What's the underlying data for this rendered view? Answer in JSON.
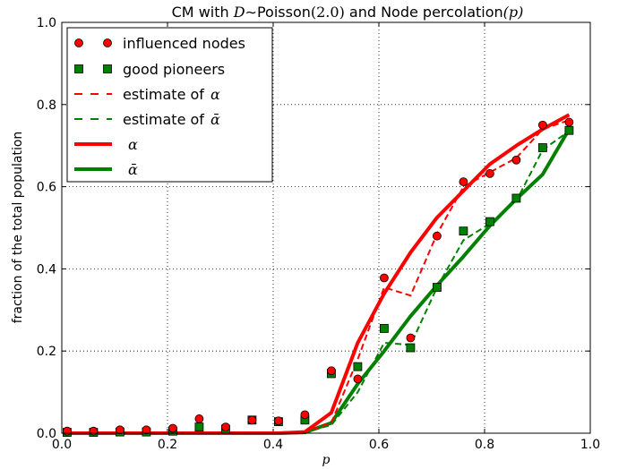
{
  "chart_data": {
    "type": "line",
    "title": {
      "prefix": "CM with ",
      "math1": "D",
      "tilde": "∼",
      "mid": "Poisson",
      "math2": "(2.0)",
      "suffix": " and Node percolation",
      "math3": "(p)"
    },
    "xlabel": "p",
    "ylabel": "fraction of the total population",
    "xlim": [
      0.0,
      1.0
    ],
    "ylim": [
      0.0,
      1.0
    ],
    "xticks": [
      "0.0",
      "0.2",
      "0.4",
      "0.6",
      "0.8",
      "1.0"
    ],
    "yticks": [
      "0.0",
      "0.2",
      "0.4",
      "0.6",
      "0.8",
      "1.0"
    ],
    "grid": true,
    "legend_position": "top-left",
    "legend": [
      {
        "key": "influenced",
        "text": "influenced nodes"
      },
      {
        "key": "pioneers",
        "text": "good pioneers"
      },
      {
        "key": "est_alpha",
        "text": "estimate of ",
        "math": "α"
      },
      {
        "key": "est_alphabar",
        "text": "estimate of ",
        "math": "ᾱ"
      },
      {
        "key": "alpha",
        "text": "",
        "math": "α"
      },
      {
        "key": "alphabar",
        "text": "",
        "math": "ᾱ"
      }
    ],
    "colors": {
      "red": "#ff0000",
      "green": "#008000",
      "grid": "#000000"
    },
    "series": {
      "influenced": {
        "x": [
          0.01,
          0.06,
          0.11,
          0.16,
          0.21,
          0.26,
          0.31,
          0.36,
          0.41,
          0.46,
          0.51,
          0.56,
          0.61,
          0.66,
          0.71,
          0.76,
          0.81,
          0.86,
          0.91,
          0.96
        ],
        "y": [
          0.005,
          0.005,
          0.008,
          0.008,
          0.012,
          0.035,
          0.015,
          0.032,
          0.03,
          0.045,
          0.152,
          0.132,
          0.378,
          0.232,
          0.48,
          0.612,
          0.632,
          0.665,
          0.75,
          0.757
        ]
      },
      "pioneers": {
        "x": [
          0.01,
          0.06,
          0.11,
          0.16,
          0.21,
          0.26,
          0.31,
          0.36,
          0.41,
          0.46,
          0.51,
          0.56,
          0.61,
          0.66,
          0.71,
          0.76,
          0.81,
          0.86,
          0.91,
          0.96
        ],
        "y": [
          0.002,
          0.002,
          0.003,
          0.003,
          0.005,
          0.015,
          0.01,
          0.032,
          0.028,
          0.032,
          0.145,
          0.162,
          0.255,
          0.208,
          0.355,
          0.492,
          0.515,
          0.572,
          0.695,
          0.737
        ]
      },
      "est_alpha": {
        "x": [
          0.01,
          0.06,
          0.11,
          0.16,
          0.21,
          0.26,
          0.31,
          0.36,
          0.41,
          0.46,
          0.51,
          0.56,
          0.61,
          0.66,
          0.71,
          0.76,
          0.81,
          0.86,
          0.91,
          0.96
        ],
        "y": [
          0,
          0,
          0,
          0,
          0,
          0,
          0,
          0,
          0,
          0.003,
          0.025,
          0.18,
          0.355,
          0.335,
          0.485,
          0.6,
          0.635,
          0.67,
          0.74,
          0.762
        ]
      },
      "est_alphabar": {
        "x": [
          0.01,
          0.06,
          0.11,
          0.16,
          0.21,
          0.26,
          0.31,
          0.36,
          0.41,
          0.46,
          0.51,
          0.56,
          0.61,
          0.66,
          0.71,
          0.76,
          0.81,
          0.86,
          0.91,
          0.96
        ],
        "y": [
          0,
          0,
          0,
          0,
          0,
          0,
          0,
          0,
          0,
          0.002,
          0.02,
          0.1,
          0.22,
          0.215,
          0.355,
          0.47,
          0.51,
          0.565,
          0.69,
          0.735
        ]
      },
      "alpha": {
        "x": [
          0.01,
          0.06,
          0.11,
          0.16,
          0.21,
          0.26,
          0.31,
          0.36,
          0.41,
          0.46,
          0.51,
          0.56,
          0.61,
          0.66,
          0.71,
          0.76,
          0.81,
          0.86,
          0.91,
          0.96
        ],
        "y": [
          0,
          0,
          0,
          0,
          0,
          0,
          0,
          0,
          0,
          0.003,
          0.05,
          0.22,
          0.34,
          0.44,
          0.525,
          0.59,
          0.655,
          0.7,
          0.74,
          0.775
        ]
      },
      "alphabar": {
        "x": [
          0.01,
          0.06,
          0.11,
          0.16,
          0.21,
          0.26,
          0.31,
          0.36,
          0.41,
          0.46,
          0.51,
          0.56,
          0.61,
          0.66,
          0.71,
          0.76,
          0.81,
          0.86,
          0.91,
          0.96
        ],
        "y": [
          0,
          0,
          0,
          0,
          0,
          0,
          0,
          0,
          0,
          0.002,
          0.025,
          0.12,
          0.2,
          0.285,
          0.36,
          0.43,
          0.505,
          0.57,
          0.63,
          0.74
        ]
      }
    }
  }
}
